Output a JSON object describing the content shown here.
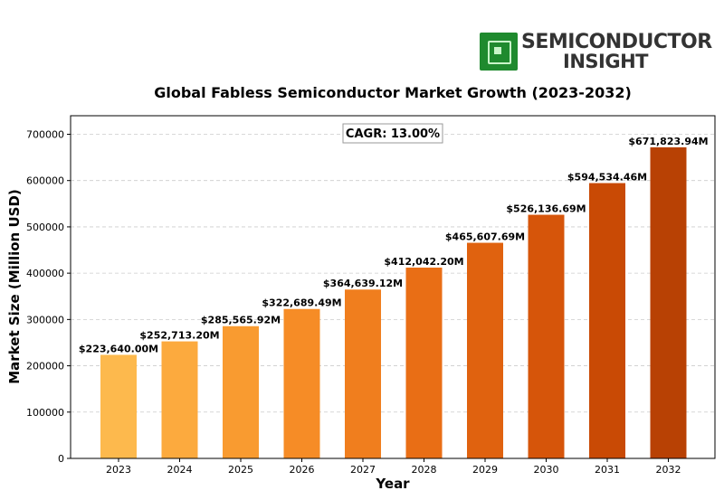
{
  "logo": {
    "line1": "SEMICONDUCTOR",
    "line2": "INSIGHT",
    "chip_color": "#1f8a2e"
  },
  "chart_data": {
    "type": "bar",
    "title": "Global Fabless Semiconductor Market Growth (2023-2032)",
    "xlabel": "Year",
    "ylabel": "Market Size (Million USD)",
    "ylim": [
      0,
      740000
    ],
    "yticks": [
      0,
      100000,
      200000,
      300000,
      400000,
      500000,
      600000,
      700000
    ],
    "grid": true,
    "annotation": "CAGR: 13.00%",
    "categories": [
      "2023",
      "2024",
      "2025",
      "2026",
      "2027",
      "2028",
      "2029",
      "2030",
      "2031",
      "2032"
    ],
    "values": [
      223640.0,
      252713.2,
      285565.92,
      322689.49,
      364639.12,
      412042.2,
      465607.69,
      526136.69,
      594534.46,
      671823.94
    ],
    "labels": [
      "$223,640.00M",
      "$252,713.20M",
      "$285,565.92M",
      "$322,689.49M",
      "$364,639.12M",
      "$412,042.20M",
      "$465,607.69M",
      "$526,136.69M",
      "$594,534.46M",
      "$671,823.94M"
    ],
    "colors": [
      "#fdb94d",
      "#fcaa3e",
      "#f99b30",
      "#f68c26",
      "#f07e1e",
      "#e96e15",
      "#e0620f",
      "#d6550a",
      "#c94a05",
      "#b84104"
    ]
  }
}
